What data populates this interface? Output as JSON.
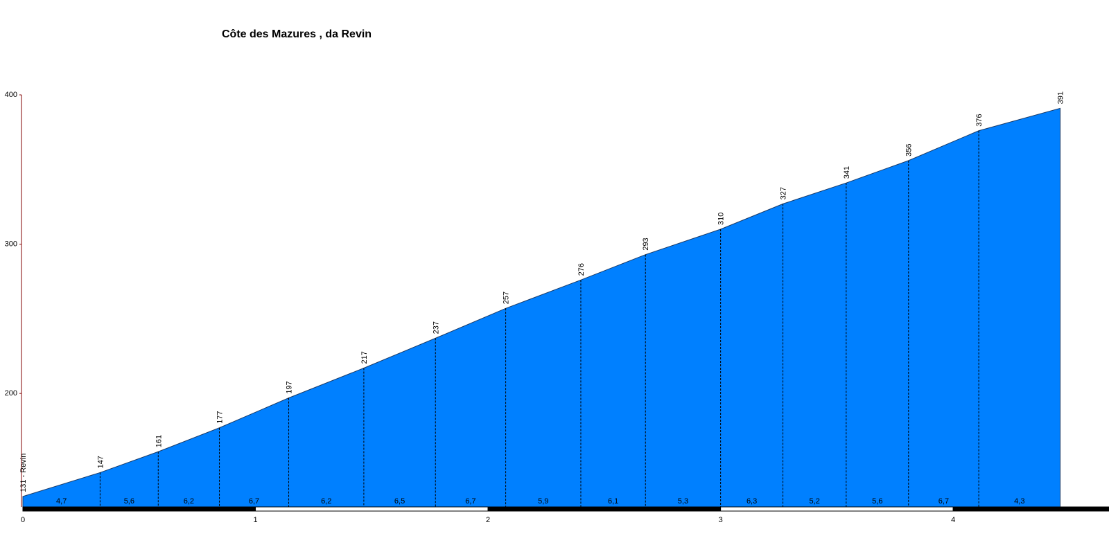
{
  "chart_data": {
    "type": "area",
    "title": "Côte des Mazures , da Revin",
    "x": [
      0,
      0.332,
      0.582,
      0.845,
      1.143,
      1.466,
      1.774,
      2.076,
      2.399,
      2.677,
      3.0,
      3.268,
      3.54,
      3.808,
      4.11,
      4.46
    ],
    "values": [
      131,
      147,
      161,
      177,
      197,
      217,
      237,
      257,
      276,
      293,
      310,
      327,
      341,
      356,
      376,
      391
    ],
    "value_labels": [
      "131 - Revin",
      "147",
      "161",
      "177",
      "197",
      "217",
      "237",
      "257",
      "276",
      "293",
      "310",
      "327",
      "341",
      "356",
      "376",
      "391"
    ],
    "gradients": {
      "values": [
        4.7,
        5.6,
        6.2,
        6.7,
        6.2,
        6.5,
        6.7,
        5.9,
        6.1,
        5.3,
        6.3,
        5.2,
        5.6,
        6.7,
        4.3
      ],
      "value_labels": [
        "4,7",
        "5,6",
        "6,2",
        "6,7",
        "6,2",
        "6,5",
        "6,7",
        "5,9",
        "6,1",
        "5,3",
        "6,3",
        "5,2",
        "5,6",
        "6,7",
        "4,3"
      ]
    },
    "color": "#0080ff",
    "xlim": [
      0,
      4.67
    ],
    "xticks": [
      0,
      1,
      2,
      3,
      4
    ],
    "ylim": [
      124,
      400
    ],
    "yticks": [
      200,
      300,
      400
    ]
  }
}
